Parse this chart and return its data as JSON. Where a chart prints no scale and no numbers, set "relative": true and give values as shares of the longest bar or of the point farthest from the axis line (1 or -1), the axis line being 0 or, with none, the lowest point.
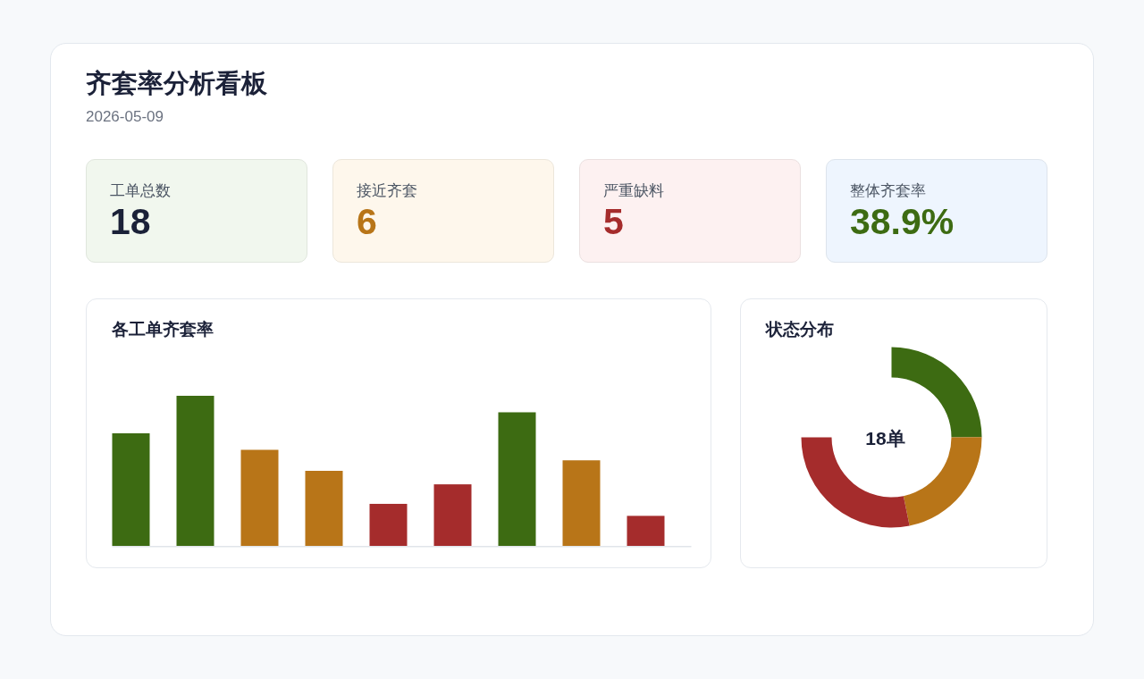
{
  "chart_data": [
    {
      "type": "other",
      "title": "齐套率分析看板",
      "subtitle": "2026-05-09",
      "categories": [
        "工单总数",
        "接近齐套",
        "严重缺料",
        "整体齐套率"
      ],
      "value_labels": [
        "18",
        "6",
        "5",
        "38.9%"
      ],
      "colors": [
        "#f1f7ee",
        "#fef7ec",
        "#fdf1f1",
        "#eef5fe"
      ]
    },
    {
      "type": "bar",
      "title": "各工单齐套率",
      "relative": true,
      "categories": [
        null,
        null,
        null,
        null,
        null,
        null,
        null,
        null,
        null
      ],
      "values": [
        0.75,
        1,
        0.64,
        0.5,
        0.28,
        0.41,
        0.89,
        0.57,
        0.2
      ],
      "colors": [
        "#3d6b12",
        "#3d6b12",
        "#b87518",
        "#b87518",
        "#a52c2c",
        "#a52c2c",
        "#3d6b12",
        "#b87518",
        "#a52c2c"
      ]
    },
    {
      "type": "donut",
      "title": "状态分布",
      "categories": [
        null,
        null,
        null
      ],
      "values": [
        33.3,
        29.1,
        37.6
      ],
      "colors": [
        "#3d6b12",
        "#b87518",
        "#a52c2c"
      ],
      "annotations": [
        "18单"
      ]
    }
  ]
}
